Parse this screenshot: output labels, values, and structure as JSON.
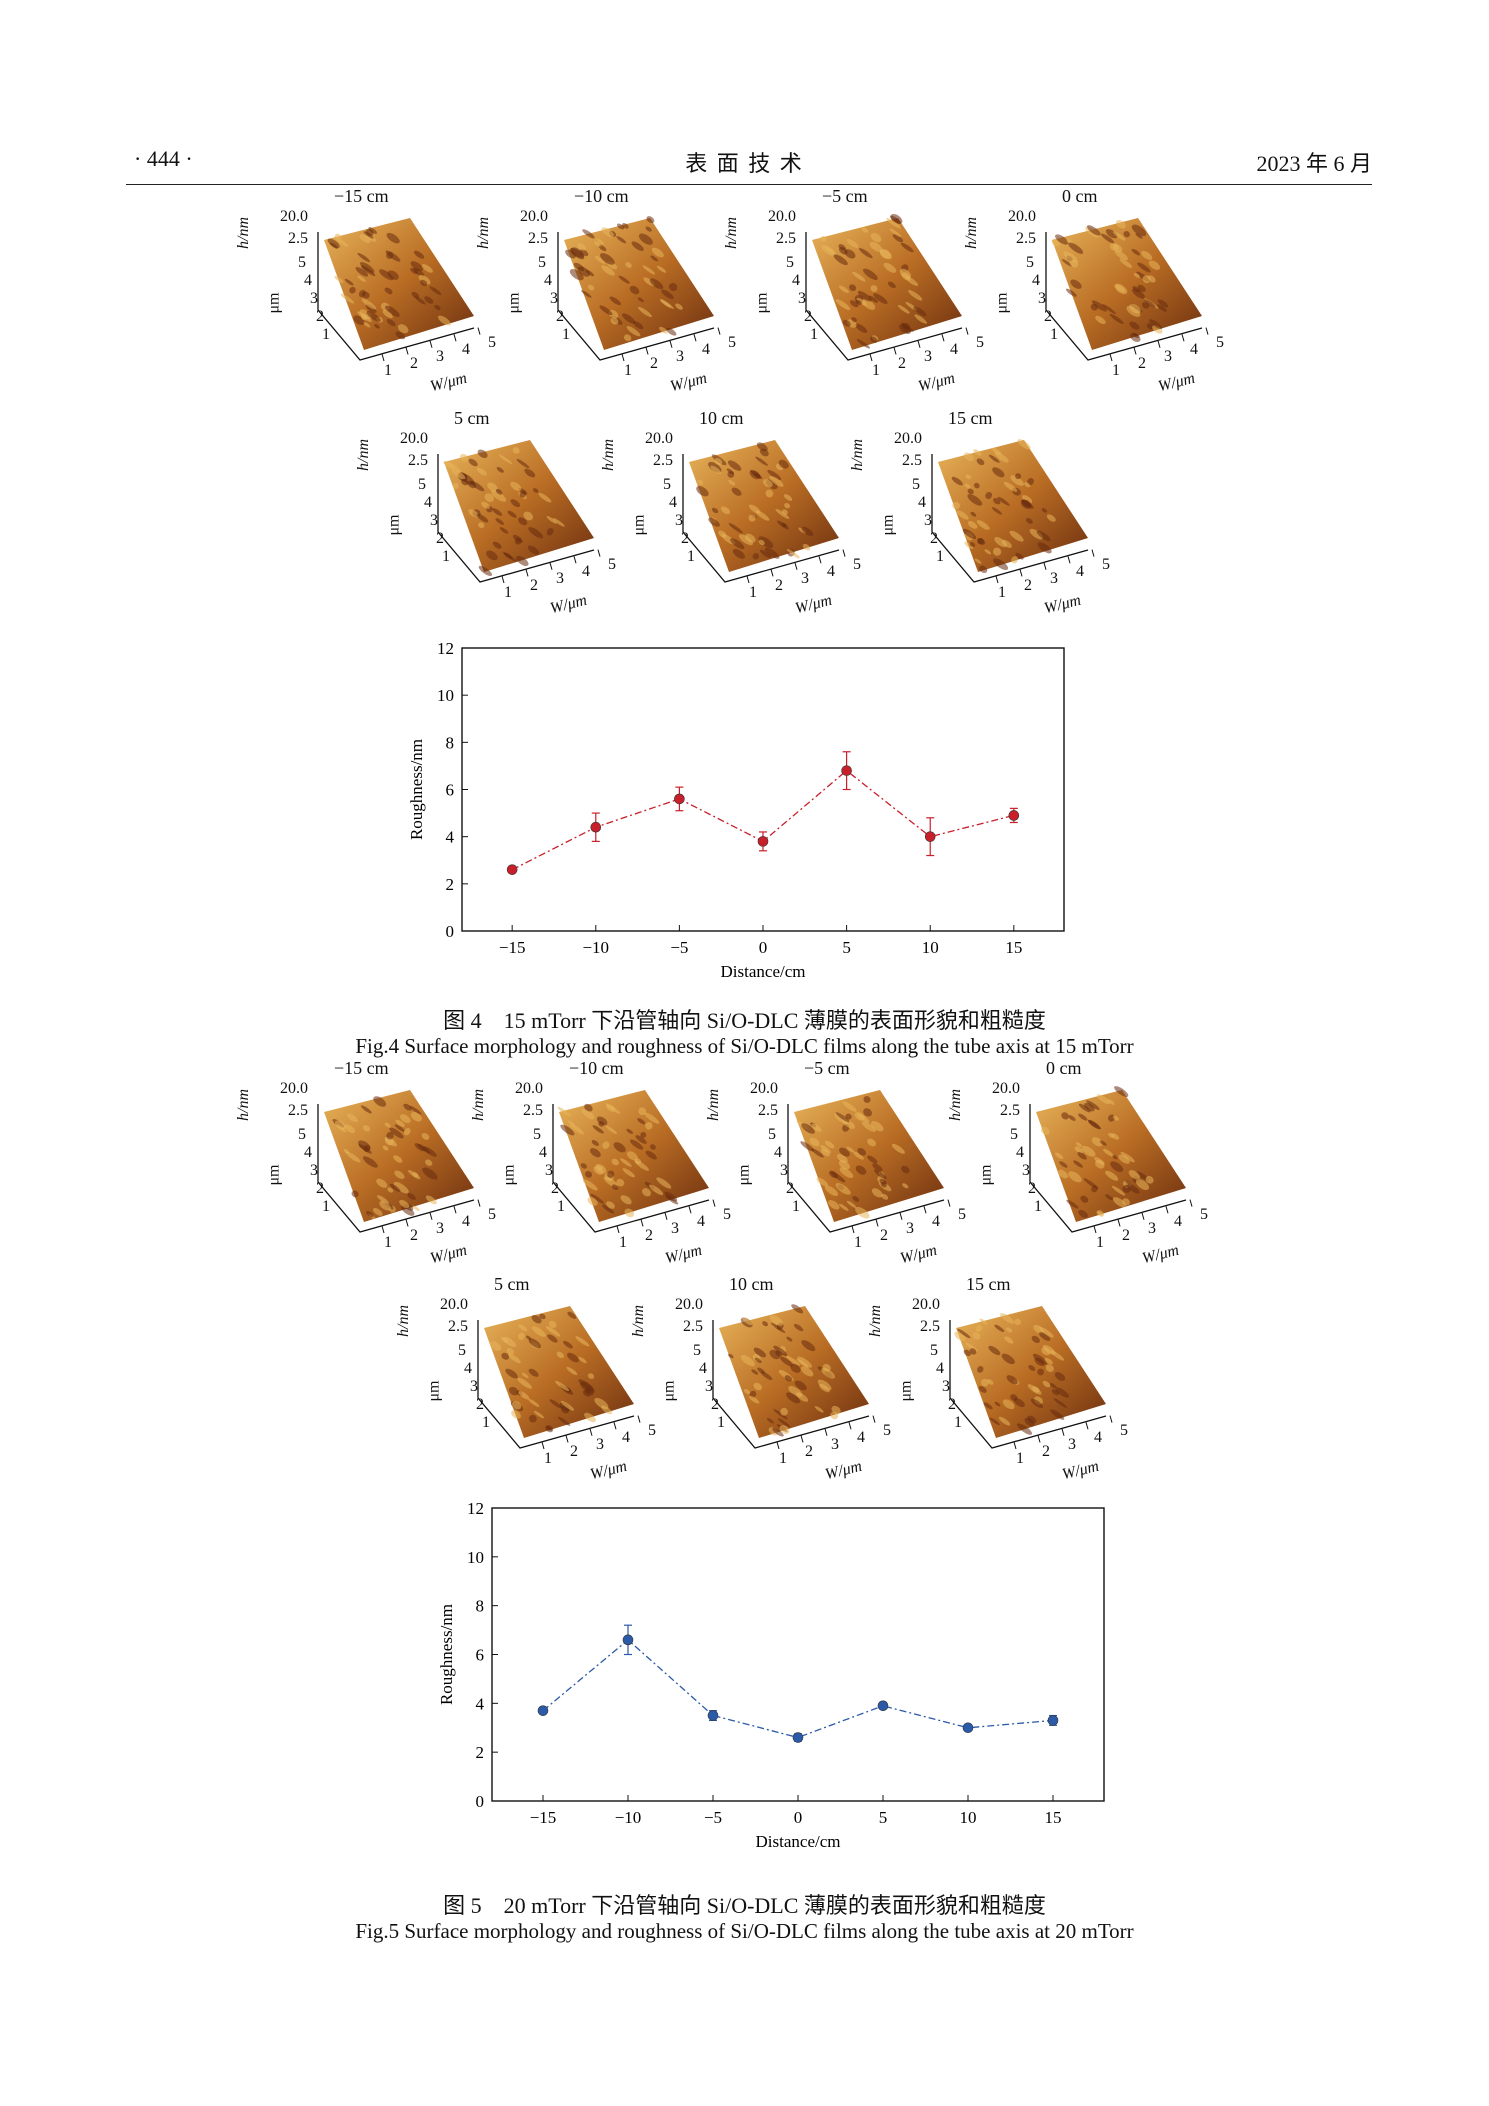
{
  "header": {
    "page_number": "· 444 ·",
    "journal": "表 面 技 术",
    "date": "2023 年 6 月"
  },
  "afm_axes": {
    "h_label": "h/nm",
    "h_ticks": [
      "20.0",
      "2.5"
    ],
    "y_label": "μm",
    "y_ticks": [
      "1",
      "2",
      "3",
      "4",
      "5"
    ],
    "w_label": "W/μm",
    "w_ticks": [
      "1",
      "2",
      "3",
      "4",
      "5"
    ]
  },
  "colors": {
    "afm_light": "#e8b45a",
    "afm_mid": "#b96d24",
    "afm_dark": "#6a2c0e",
    "fig4_series": "#c8202a",
    "fig5_series": "#2b5aa8"
  },
  "fig4": {
    "afm_labels": [
      "−15 cm",
      "−10 cm",
      "−5 cm",
      "0 cm",
      "5 cm",
      "10 cm",
      "15 cm"
    ],
    "caption_cn": "图 4　15 mTorr 下沿管轴向 Si/O-DLC 薄膜的表面形貌和粗糙度",
    "caption_en": "Fig.4 Surface morphology and roughness of Si/O-DLC films along the tube axis at 15 mTorr"
  },
  "fig5": {
    "afm_labels": [
      "−15 cm",
      "−10 cm",
      "−5 cm",
      "0 cm",
      "5 cm",
      "10 cm",
      "15 cm"
    ],
    "caption_cn": "图 5　20 mTorr 下沿管轴向 Si/O-DLC 薄膜的表面形貌和粗糙度",
    "caption_en": "Fig.5 Surface morphology and roughness of Si/O-DLC films along the tube axis at 20 mTorr"
  },
  "chart_data": [
    {
      "type": "scatter",
      "xlabel": "Distance/cm",
      "ylabel": "Roughness/nm",
      "x": [
        -15,
        -10,
        -5,
        0,
        5,
        10,
        15
      ],
      "x_ticks": [
        "−15",
        "−10",
        "−5",
        "0",
        "5",
        "10",
        "15"
      ],
      "y_ticks": [
        "0",
        "2",
        "4",
        "6",
        "8",
        "10",
        "12"
      ],
      "ylim": [
        0,
        12
      ],
      "xlim": [
        -18,
        18
      ],
      "series": [
        {
          "values": [
            2.6,
            4.4,
            5.6,
            3.8,
            6.8,
            4.0,
            4.9
          ],
          "errors": [
            0.1,
            0.6,
            0.5,
            0.4,
            0.8,
            0.8,
            0.3
          ]
        }
      ],
      "line_style": "dash-dot",
      "grid": false
    },
    {
      "type": "scatter",
      "xlabel": "Distance/cm",
      "ylabel": "Roughness/nm",
      "x": [
        -15,
        -10,
        -5,
        0,
        5,
        10,
        15
      ],
      "x_ticks": [
        "−15",
        "−10",
        "−5",
        "0",
        "5",
        "10",
        "15"
      ],
      "y_ticks": [
        "0",
        "2",
        "4",
        "6",
        "8",
        "10",
        "12"
      ],
      "ylim": [
        0,
        12
      ],
      "xlim": [
        -18,
        18
      ],
      "series": [
        {
          "values": [
            3.7,
            6.6,
            3.5,
            2.6,
            3.9,
            3.0,
            3.3
          ],
          "errors": [
            0.1,
            0.6,
            0.2,
            0.15,
            0.1,
            0.1,
            0.2
          ]
        }
      ],
      "line_style": "dash-dot",
      "grid": false
    }
  ]
}
